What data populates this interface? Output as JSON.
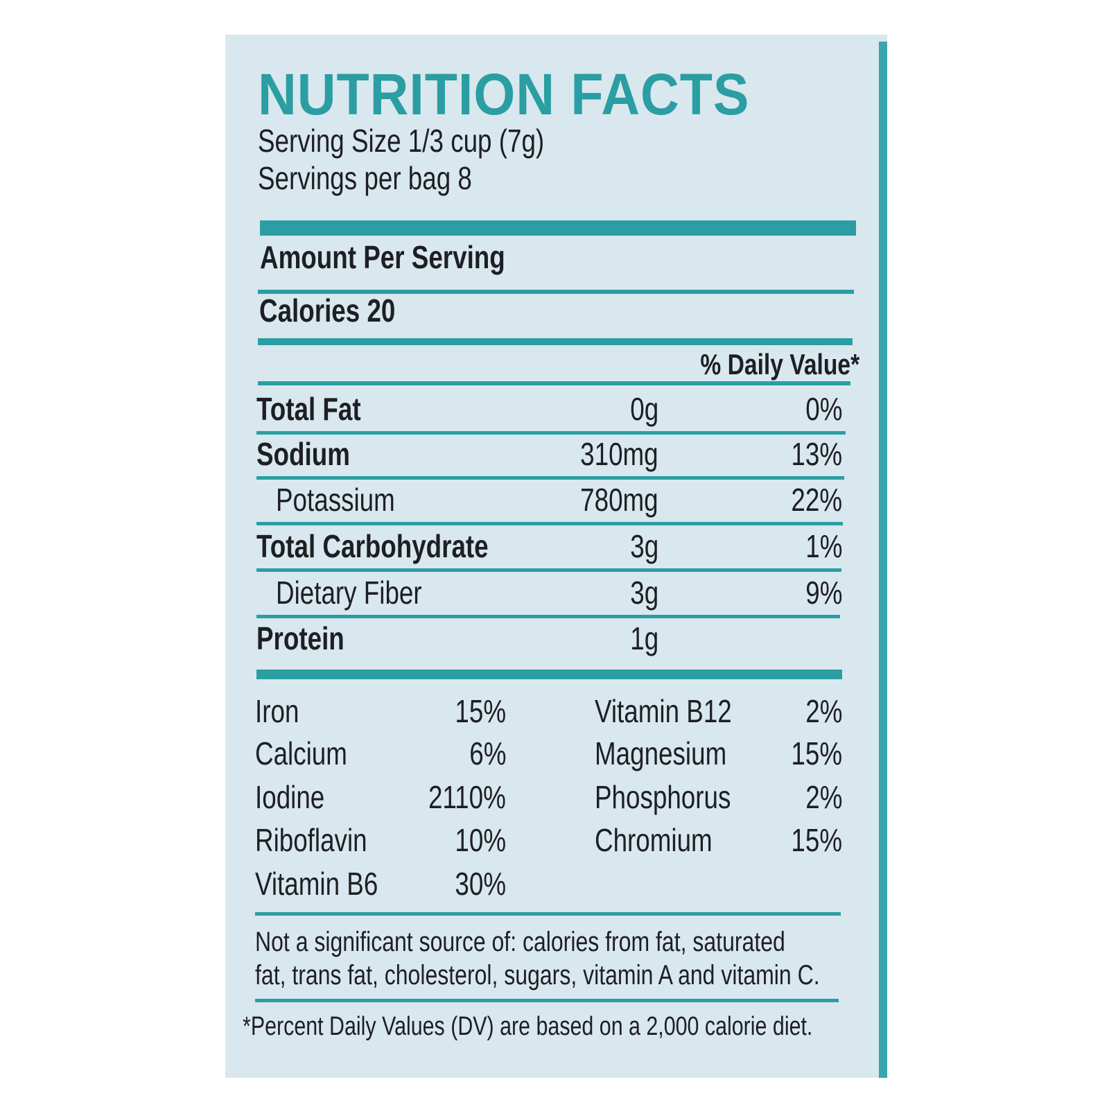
{
  "title": "NUTRITION FACTS",
  "serving_size": "Serving Size 1/3 cup (7g)",
  "servings_per_bag": "Servings per bag 8",
  "amount_per_serving": "Amount Per Serving",
  "calories": "Calories 20",
  "daily_value_header": "% Daily Value*",
  "nutrients": [
    {
      "name": "Total Fat",
      "amount": "0g",
      "daily_value": "0%",
      "bold": true
    },
    {
      "name": "Sodium",
      "amount": "310mg",
      "daily_value": "13%",
      "bold": true
    },
    {
      "name": "Potassium",
      "amount": "780mg",
      "daily_value": "22%",
      "bold": false
    },
    {
      "name": "Total Carbohydrate",
      "amount": "3g",
      "daily_value": "1%",
      "bold": true
    },
    {
      "name": "Dietary Fiber",
      "amount": "3g",
      "daily_value": "9%",
      "bold": false
    },
    {
      "name": "Protein",
      "amount": "1g",
      "bold": true
    }
  ],
  "vitamins_left": [
    {
      "name": "Iron",
      "value": "15%"
    },
    {
      "name": "Calcium",
      "value": "6%"
    },
    {
      "name": "Iodine",
      "value": "2110%"
    },
    {
      "name": "Riboflavin",
      "value": "10%"
    },
    {
      "name": "Vitamin B6",
      "value": "30%"
    }
  ],
  "vitamins_right": [
    {
      "name": "Vitamin B12",
      "value": "2%"
    },
    {
      "name": "Magnesium",
      "value": "15%"
    },
    {
      "name": "Phosphorus",
      "value": "2%"
    },
    {
      "name": "Chromium",
      "value": "15%"
    }
  ],
  "not_significant": "Not a significant source of: calories from fat, saturated fat, trans fat, cholesterol, sugars, vitamin A and vitamin C.",
  "footnote": "*Percent Daily Values (DV) are based on a 2,000 calorie diet."
}
